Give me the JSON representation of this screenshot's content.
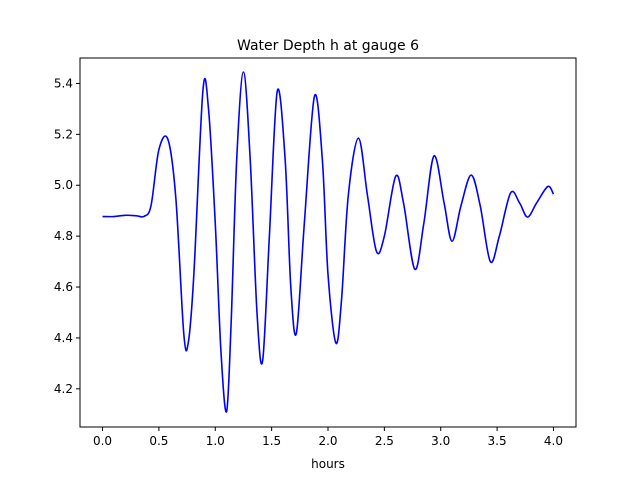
{
  "chart_data": {
    "type": "line",
    "title": "Water Depth h at gauge 6",
    "xlabel": "hours",
    "ylabel": "",
    "xlim": [
      -0.2,
      4.2
    ],
    "ylim": [
      4.05,
      5.5
    ],
    "xticks": [
      0.0,
      0.5,
      1.0,
      1.5,
      2.0,
      2.5,
      3.0,
      3.5,
      4.0
    ],
    "xtick_labels": [
      "0.0",
      "0.5",
      "1.0",
      "1.5",
      "2.0",
      "2.5",
      "3.0",
      "3.5",
      "4.0"
    ],
    "yticks": [
      4.2,
      4.4,
      4.6,
      4.8,
      5.0,
      5.2,
      5.4
    ],
    "ytick_labels": [
      "4.2",
      "4.4",
      "4.6",
      "4.8",
      "5.0",
      "5.2",
      "5.4"
    ],
    "grid": false,
    "legend": "none",
    "series": [
      {
        "color": "#0000ff",
        "points": [
          [
            0.0,
            4.877
          ],
          [
            0.1,
            4.877
          ],
          [
            0.2,
            4.882
          ],
          [
            0.3,
            4.88
          ],
          [
            0.37,
            4.878
          ],
          [
            0.43,
            4.92
          ],
          [
            0.5,
            5.14
          ],
          [
            0.58,
            5.18
          ],
          [
            0.65,
            4.95
          ],
          [
            0.72,
            4.42
          ],
          [
            0.76,
            4.38
          ],
          [
            0.81,
            4.65
          ],
          [
            0.89,
            5.37
          ],
          [
            0.94,
            5.3
          ],
          [
            1.0,
            4.85
          ],
          [
            1.05,
            4.35
          ],
          [
            1.1,
            4.11
          ],
          [
            1.14,
            4.45
          ],
          [
            1.19,
            5.1
          ],
          [
            1.25,
            5.445
          ],
          [
            1.31,
            5.1
          ],
          [
            1.37,
            4.5
          ],
          [
            1.42,
            4.31
          ],
          [
            1.48,
            4.8
          ],
          [
            1.55,
            5.37
          ],
          [
            1.62,
            5.1
          ],
          [
            1.67,
            4.6
          ],
          [
            1.72,
            4.42
          ],
          [
            1.79,
            4.85
          ],
          [
            1.88,
            5.35
          ],
          [
            1.95,
            5.1
          ],
          [
            2.0,
            4.65
          ],
          [
            2.07,
            4.38
          ],
          [
            2.12,
            4.55
          ],
          [
            2.18,
            4.96
          ],
          [
            2.27,
            5.185
          ],
          [
            2.35,
            4.96
          ],
          [
            2.43,
            4.74
          ],
          [
            2.5,
            4.8
          ],
          [
            2.6,
            5.035
          ],
          [
            2.67,
            4.93
          ],
          [
            2.77,
            4.67
          ],
          [
            2.85,
            4.85
          ],
          [
            2.94,
            5.115
          ],
          [
            3.03,
            4.93
          ],
          [
            3.1,
            4.78
          ],
          [
            3.18,
            4.92
          ],
          [
            3.27,
            5.04
          ],
          [
            3.35,
            4.92
          ],
          [
            3.44,
            4.7
          ],
          [
            3.52,
            4.8
          ],
          [
            3.62,
            4.97
          ],
          [
            3.7,
            4.93
          ],
          [
            3.77,
            4.875
          ],
          [
            3.85,
            4.93
          ],
          [
            3.95,
            4.995
          ],
          [
            4.0,
            4.965
          ]
        ]
      }
    ]
  }
}
